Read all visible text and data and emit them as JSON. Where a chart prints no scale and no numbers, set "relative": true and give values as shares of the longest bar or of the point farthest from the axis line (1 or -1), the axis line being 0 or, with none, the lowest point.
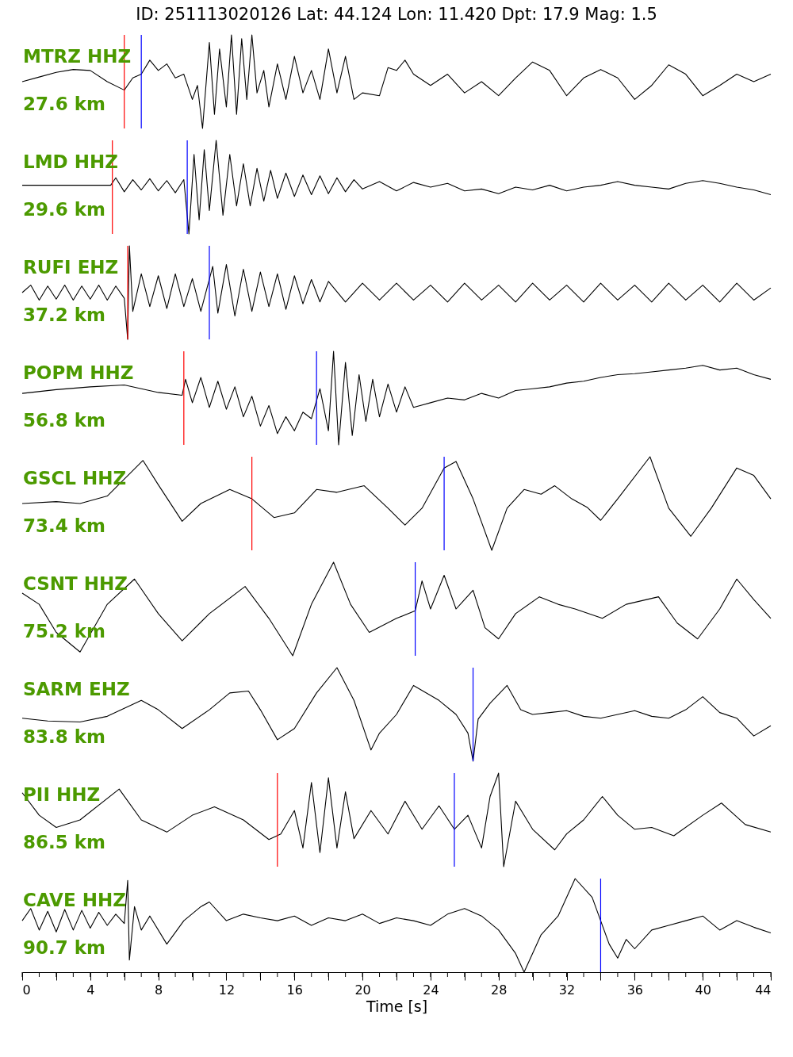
{
  "chart_data": [
    {
      "type": "line",
      "title": "ID: 251113020126 Lat:  44.124 Lon:  11.420 Dpt:    17.9 Mag:   1.5",
      "annotations": [
        "MTRZ HHZ",
        "27.6 km"
      ],
      "relative": true,
      "xlim": [
        0,
        44
      ],
      "tick_labels": false,
      "x": [
        0,
        1,
        2,
        3,
        4,
        5,
        6,
        6.5,
        7,
        7.5,
        8,
        8.5,
        9,
        9.5,
        10,
        10.3,
        10.6,
        11,
        11.3,
        11.6,
        12,
        12.3,
        12.6,
        12.9,
        13.2,
        13.5,
        13.8,
        14.2,
        14.5,
        15,
        15.5,
        16,
        16.5,
        17,
        17.5,
        18,
        18.5,
        19,
        19.5,
        20,
        21,
        21.5,
        22,
        22.5,
        23,
        24,
        25,
        26,
        27,
        28,
        29,
        30,
        31,
        32,
        33,
        34,
        35,
        36,
        37,
        38,
        39,
        40,
        41,
        42,
        43,
        44
      ],
      "series": [
        {
          "color": "#000000",
          "values": [
            0.5,
            0.55,
            0.6,
            0.63,
            0.62,
            0.5,
            0.41,
            0.54,
            0.58,
            0.73,
            0.62,
            0.69,
            0.54,
            0.58,
            0.31,
            0.46,
            0,
            0.92,
            0.15,
            0.85,
            0.23,
            1,
            0.15,
            0.96,
            0.31,
            1,
            0.38,
            0.62,
            0.23,
            0.69,
            0.31,
            0.77,
            0.38,
            0.62,
            0.31,
            0.85,
            0.38,
            0.77,
            0.31,
            0.38,
            0.35,
            0.65,
            0.62,
            0.73,
            0.58,
            0.46,
            0.58,
            0.38,
            0.5,
            0.35,
            0.54,
            0.71,
            0.62,
            0.35,
            0.54,
            0.63,
            0.54,
            0.31,
            0.46,
            0.68,
            0.58,
            0.35,
            0.46,
            0.58,
            0.5,
            0.58
          ]
        }
      ],
      "ref_lines": [
        {
          "axis": "x",
          "value": 6.0,
          "color": "#ff0000"
        },
        {
          "axis": "x",
          "value": 7.0,
          "color": "#0000ff"
        }
      ]
    },
    {
      "type": "line",
      "annotations": [
        "LMD HHZ",
        "29.6 km"
      ],
      "relative": true,
      "xlim": [
        0,
        44
      ],
      "tick_labels": false,
      "x": [
        0,
        2,
        4,
        5.2,
        5.5,
        6,
        6.5,
        7,
        7.5,
        8,
        8.5,
        9,
        9.5,
        9.8,
        10.1,
        10.4,
        10.7,
        11,
        11.4,
        11.8,
        12.2,
        12.6,
        13,
        13.4,
        13.8,
        14.2,
        14.6,
        15,
        15.5,
        16,
        16.5,
        17,
        17.5,
        18,
        18.5,
        19,
        19.5,
        20,
        21,
        22,
        23,
        24,
        25,
        26,
        27,
        28,
        29,
        30,
        31,
        32,
        33,
        34,
        35,
        36,
        37,
        38,
        39,
        40,
        41,
        42,
        43,
        44
      ],
      "series": [
        {
          "color": "#000000",
          "values": [
            0.52,
            0.52,
            0.52,
            0.52,
            0.6,
            0.45,
            0.58,
            0.47,
            0.59,
            0.46,
            0.57,
            0.44,
            0.58,
            0,
            0.85,
            0.15,
            0.9,
            0.25,
            1,
            0.2,
            0.85,
            0.3,
            0.75,
            0.3,
            0.7,
            0.35,
            0.68,
            0.38,
            0.65,
            0.4,
            0.63,
            0.42,
            0.62,
            0.43,
            0.6,
            0.45,
            0.58,
            0.48,
            0.56,
            0.46,
            0.55,
            0.5,
            0.54,
            0.46,
            0.48,
            0.43,
            0.5,
            0.47,
            0.52,
            0.46,
            0.5,
            0.52,
            0.56,
            0.52,
            0.5,
            0.48,
            0.54,
            0.57,
            0.54,
            0.5,
            0.47,
            0.42
          ]
        }
      ],
      "ref_lines": [
        {
          "axis": "x",
          "value": 5.3,
          "color": "#ff0000"
        },
        {
          "axis": "x",
          "value": 9.7,
          "color": "#0000ff"
        }
      ]
    },
    {
      "type": "line",
      "annotations": [
        "RUFI EHZ",
        "37.2 km"
      ],
      "relative": true,
      "xlim": [
        0,
        44
      ],
      "tick_labels": false,
      "x": [
        0,
        0.5,
        1,
        1.5,
        2,
        2.5,
        3,
        3.5,
        4,
        4.5,
        5,
        5.5,
        6,
        6.2,
        6.3,
        6.5,
        7,
        7.5,
        8,
        8.5,
        9,
        9.5,
        10,
        10.5,
        11.2,
        11.5,
        12,
        12.5,
        13,
        13.5,
        14,
        14.5,
        15,
        15.5,
        16,
        16.5,
        17,
        17.5,
        18,
        19,
        20,
        21,
        22,
        23,
        24,
        25,
        26,
        27,
        28,
        29,
        30,
        31,
        32,
        33,
        34,
        35,
        36,
        37,
        38,
        39,
        40,
        41,
        42,
        43,
        44
      ],
      "series": [
        {
          "color": "#000000",
          "values": [
            0.5,
            0.58,
            0.42,
            0.57,
            0.43,
            0.58,
            0.42,
            0.57,
            0.43,
            0.58,
            0.42,
            0.57,
            0.44,
            0,
            1,
            0.3,
            0.7,
            0.35,
            0.68,
            0.33,
            0.7,
            0.35,
            0.65,
            0.3,
            0.78,
            0.28,
            0.8,
            0.25,
            0.75,
            0.3,
            0.72,
            0.35,
            0.7,
            0.32,
            0.68,
            0.38,
            0.64,
            0.4,
            0.62,
            0.4,
            0.6,
            0.42,
            0.6,
            0.42,
            0.58,
            0.4,
            0.6,
            0.42,
            0.58,
            0.4,
            0.6,
            0.42,
            0.58,
            0.4,
            0.6,
            0.42,
            0.58,
            0.4,
            0.6,
            0.42,
            0.58,
            0.4,
            0.6,
            0.42,
            0.55
          ]
        }
      ],
      "ref_lines": [
        {
          "axis": "x",
          "value": 6.2,
          "color": "#ff0000"
        },
        {
          "axis": "x",
          "value": 11.0,
          "color": "#0000ff"
        }
      ]
    },
    {
      "type": "line",
      "annotations": [
        "POPM HHZ",
        "56.8 km"
      ],
      "relative": true,
      "xlim": [
        0,
        44
      ],
      "tick_labels": false,
      "x": [
        0,
        2,
        4,
        6,
        8,
        9.4,
        9.6,
        10,
        10.5,
        11,
        11.5,
        12,
        12.5,
        13,
        13.5,
        14,
        14.5,
        15,
        15.5,
        16,
        16.5,
        17,
        17.5,
        18,
        18.3,
        18.6,
        19,
        19.4,
        19.8,
        20.2,
        20.6,
        21,
        21.5,
        22,
        22.5,
        23,
        24,
        25,
        26,
        27,
        28,
        29,
        30,
        31,
        32,
        33,
        34,
        35,
        36,
        37,
        38,
        39,
        40,
        41,
        42,
        43,
        44
      ],
      "series": [
        {
          "color": "#000000",
          "values": [
            0.55,
            0.59,
            0.62,
            0.64,
            0.56,
            0.53,
            0.7,
            0.45,
            0.72,
            0.4,
            0.68,
            0.38,
            0.62,
            0.3,
            0.52,
            0.2,
            0.42,
            0.12,
            0.3,
            0.15,
            0.35,
            0.28,
            0.6,
            0.15,
            1,
            0,
            0.88,
            0.1,
            0.75,
            0.25,
            0.7,
            0.3,
            0.65,
            0.35,
            0.62,
            0.4,
            0.45,
            0.5,
            0.48,
            0.55,
            0.5,
            0.58,
            0.6,
            0.62,
            0.66,
            0.68,
            0.72,
            0.75,
            0.76,
            0.78,
            0.8,
            0.82,
            0.85,
            0.8,
            0.82,
            0.75,
            0.7
          ]
        }
      ],
      "ref_lines": [
        {
          "axis": "x",
          "value": 9.5,
          "color": "#ff0000"
        },
        {
          "axis": "x",
          "value": 17.3,
          "color": "#0000ff"
        }
      ]
    },
    {
      "type": "line",
      "annotations": [
        "GSCL HHZ",
        "73.4 km"
      ],
      "relative": true,
      "xlim": [
        0,
        44
      ],
      "tick_labels": false,
      "x": [
        0,
        2,
        3.4,
        5,
        7.1,
        8,
        9.4,
        10.5,
        12.2,
        13.5,
        14.8,
        16,
        17.3,
        18.5,
        20.1,
        21.5,
        22.5,
        23.5,
        24.8,
        25.5,
        26.5,
        27.6,
        28.5,
        29.5,
        30.5,
        31.3,
        32.3,
        33.2,
        34,
        35,
        36.9,
        38,
        39.3,
        40.5,
        42,
        43,
        44
      ],
      "series": [
        {
          "color": "#000000",
          "values": [
            0.5,
            0.52,
            0.5,
            0.58,
            0.96,
            0.7,
            0.31,
            0.5,
            0.65,
            0.55,
            0.35,
            0.4,
            0.65,
            0.62,
            0.69,
            0.45,
            0.27,
            0.45,
            0.88,
            0.95,
            0.55,
            0,
            0.45,
            0.65,
            0.6,
            0.69,
            0.55,
            0.46,
            0.32,
            0.55,
            1,
            0.45,
            0.15,
            0.45,
            0.88,
            0.8,
            0.55
          ]
        }
      ],
      "ref_lines": [
        {
          "axis": "x",
          "value": 13.5,
          "color": "#ff0000"
        },
        {
          "axis": "x",
          "value": 24.8,
          "color": "#0000ff"
        }
      ]
    },
    {
      "type": "line",
      "annotations": [
        "CSNT HHZ",
        "75.2 km"
      ],
      "relative": true,
      "xlim": [
        0,
        44
      ],
      "tick_labels": false,
      "x": [
        0,
        1,
        2,
        3.4,
        5,
        6.6,
        8,
        9.4,
        11,
        13.1,
        14.5,
        15.9,
        17,
        18.3,
        19.3,
        20.4,
        22,
        23.1,
        23.5,
        24,
        24.8,
        25.5,
        26.5,
        27.2,
        28,
        29,
        30.4,
        31.5,
        32.5,
        34.1,
        35.5,
        37.4,
        38.5,
        39.7,
        41,
        42,
        43,
        44
      ],
      "series": [
        {
          "color": "#000000",
          "values": [
            0.67,
            0.55,
            0.25,
            0.04,
            0.55,
            0.82,
            0.45,
            0.16,
            0.45,
            0.74,
            0.4,
            0,
            0.55,
            1,
            0.55,
            0.25,
            0.4,
            0.48,
            0.8,
            0.5,
            0.86,
            0.5,
            0.7,
            0.3,
            0.18,
            0.45,
            0.63,
            0.55,
            0.5,
            0.4,
            0.55,
            0.63,
            0.35,
            0.18,
            0.5,
            0.82,
            0.6,
            0.4
          ]
        }
      ],
      "ref_lines": [
        {
          "axis": "x",
          "value": 23.1,
          "color": "#0000ff"
        }
      ]
    },
    {
      "type": "line",
      "annotations": [
        "SARM EHZ",
        "83.8 km"
      ],
      "relative": true,
      "xlim": [
        0,
        44
      ],
      "tick_labels": false,
      "x": [
        0,
        1.5,
        3.4,
        5,
        7,
        8,
        9.4,
        11,
        12.2,
        13.3,
        14,
        15,
        16,
        17.3,
        18.5,
        19.5,
        20.5,
        21,
        22,
        23,
        24.5,
        25.5,
        26.2,
        26.5,
        26.8,
        27.5,
        28.5,
        29.3,
        30,
        31,
        32,
        33,
        34,
        35,
        36,
        37,
        38,
        39,
        40,
        41,
        42,
        43,
        44
      ],
      "series": [
        {
          "color": "#000000",
          "values": [
            0.46,
            0.43,
            0.42,
            0.48,
            0.65,
            0.55,
            0.35,
            0.55,
            0.73,
            0.75,
            0.55,
            0.23,
            0.35,
            0.73,
            1,
            0.65,
            0.12,
            0.3,
            0.5,
            0.81,
            0.65,
            0.5,
            0.3,
            0,
            0.45,
            0.62,
            0.81,
            0.55,
            0.5,
            0.52,
            0.54,
            0.48,
            0.46,
            0.5,
            0.54,
            0.48,
            0.46,
            0.55,
            0.69,
            0.52,
            0.46,
            0.27,
            0.38
          ]
        }
      ],
      "ref_lines": [
        {
          "axis": "x",
          "value": 26.5,
          "color": "#0000ff"
        }
      ]
    },
    {
      "type": "line",
      "annotations": [
        "PII HHZ",
        "86.5 km"
      ],
      "relative": true,
      "xlim": [
        0,
        44
      ],
      "tick_labels": false,
      "x": [
        0,
        1,
        2,
        3.4,
        5.7,
        7,
        8.5,
        10,
        11.3,
        13,
        14.5,
        15.2,
        16,
        16.5,
        17,
        17.5,
        18,
        18.5,
        19,
        19.5,
        20.5,
        21.5,
        22.5,
        23.5,
        24.5,
        25.4,
        26.2,
        27,
        27.5,
        28,
        28.3,
        29,
        30,
        31.3,
        32,
        33,
        34.1,
        35,
        36,
        37,
        38.3,
        40,
        41.1,
        42.5,
        44
      ],
      "series": [
        {
          "color": "#000000",
          "values": [
            0.79,
            0.55,
            0.42,
            0.5,
            0.83,
            0.5,
            0.37,
            0.55,
            0.64,
            0.5,
            0.29,
            0.35,
            0.6,
            0.2,
            0.9,
            0.15,
            0.95,
            0.2,
            0.8,
            0.3,
            0.6,
            0.35,
            0.7,
            0.4,
            0.65,
            0.4,
            0.55,
            0.2,
            0.75,
            1,
            0,
            0.7,
            0.4,
            0.18,
            0.35,
            0.5,
            0.75,
            0.55,
            0.4,
            0.42,
            0.33,
            0.55,
            0.68,
            0.45,
            0.37
          ]
        }
      ],
      "ref_lines": [
        {
          "axis": "x",
          "value": 15.0,
          "color": "#ff0000"
        },
        {
          "axis": "x",
          "value": 25.4,
          "color": "#0000ff"
        }
      ]
    },
    {
      "type": "line",
      "annotations": [
        "CAVE HHZ",
        "90.7 km"
      ],
      "relative": true,
      "xlim": [
        0,
        44
      ],
      "tick_labels": "x",
      "xlabel": "Time [s]",
      "xticks": [
        0,
        {
          "value": 1,
          "label": null
        },
        {
          "value": 2,
          "label": null
        },
        {
          "value": 3,
          "label": null
        },
        4,
        {
          "value": 5,
          "label": null
        },
        {
          "value": 6,
          "label": null
        },
        {
          "value": 7,
          "label": null
        },
        8,
        {
          "value": 9,
          "label": null
        },
        {
          "value": 10,
          "label": null
        },
        {
          "value": 11,
          "label": null
        },
        12,
        {
          "value": 13,
          "label": null
        },
        {
          "value": 14,
          "label": null
        },
        {
          "value": 15,
          "label": null
        },
        16,
        {
          "value": 17,
          "label": null
        },
        {
          "value": 18,
          "label": null
        },
        {
          "value": 19,
          "label": null
        },
        20,
        {
          "value": 21,
          "label": null
        },
        {
          "value": 22,
          "label": null
        },
        {
          "value": 23,
          "label": null
        },
        24,
        {
          "value": 25,
          "label": null
        },
        {
          "value": 26,
          "label": null
        },
        {
          "value": 27,
          "label": null
        },
        28,
        {
          "value": 29,
          "label": null
        },
        {
          "value": 30,
          "label": null
        },
        {
          "value": 31,
          "label": null
        },
        32,
        {
          "value": 33,
          "label": null
        },
        {
          "value": 34,
          "label": null
        },
        {
          "value": 35,
          "label": null
        },
        36,
        {
          "value": 37,
          "label": null
        },
        {
          "value": 38,
          "label": null
        },
        {
          "value": 39,
          "label": null
        },
        40,
        {
          "value": 41,
          "label": null
        },
        {
          "value": 42,
          "label": null
        },
        {
          "value": 43,
          "label": null
        },
        44
      ],
      "x": [
        0,
        0.5,
        1,
        1.5,
        2,
        2.5,
        3,
        3.5,
        4,
        4.5,
        5,
        5.5,
        6,
        6.2,
        6.3,
        6.6,
        7,
        7.5,
        8.5,
        9.5,
        10.5,
        11,
        12,
        13,
        14,
        15,
        16,
        17,
        18,
        19,
        20,
        21,
        22,
        23,
        24,
        25,
        26,
        27,
        28,
        29,
        29.5,
        30.5,
        31.5,
        32.5,
        33.5,
        34,
        34.5,
        35,
        35.5,
        36,
        37,
        38,
        39,
        40,
        41,
        42,
        43,
        44
      ],
      "series": [
        {
          "color": "#000000",
          "values": [
            0.55,
            0.68,
            0.45,
            0.65,
            0.43,
            0.67,
            0.45,
            0.66,
            0.47,
            0.64,
            0.5,
            0.62,
            0.52,
            0.98,
            0.13,
            0.7,
            0.45,
            0.6,
            0.3,
            0.55,
            0.7,
            0.75,
            0.55,
            0.62,
            0.58,
            0.55,
            0.6,
            0.5,
            0.58,
            0.55,
            0.62,
            0.52,
            0.58,
            0.55,
            0.5,
            0.62,
            0.68,
            0.6,
            0.45,
            0.2,
            0,
            0.4,
            0.6,
            1,
            0.8,
            0.55,
            0.3,
            0.15,
            0.35,
            0.25,
            0.45,
            0.5,
            0.55,
            0.6,
            0.45,
            0.55,
            0.48,
            0.42
          ]
        }
      ],
      "ref_lines": [
        {
          "axis": "x",
          "value": 34.0,
          "color": "#0000ff"
        }
      ]
    }
  ]
}
